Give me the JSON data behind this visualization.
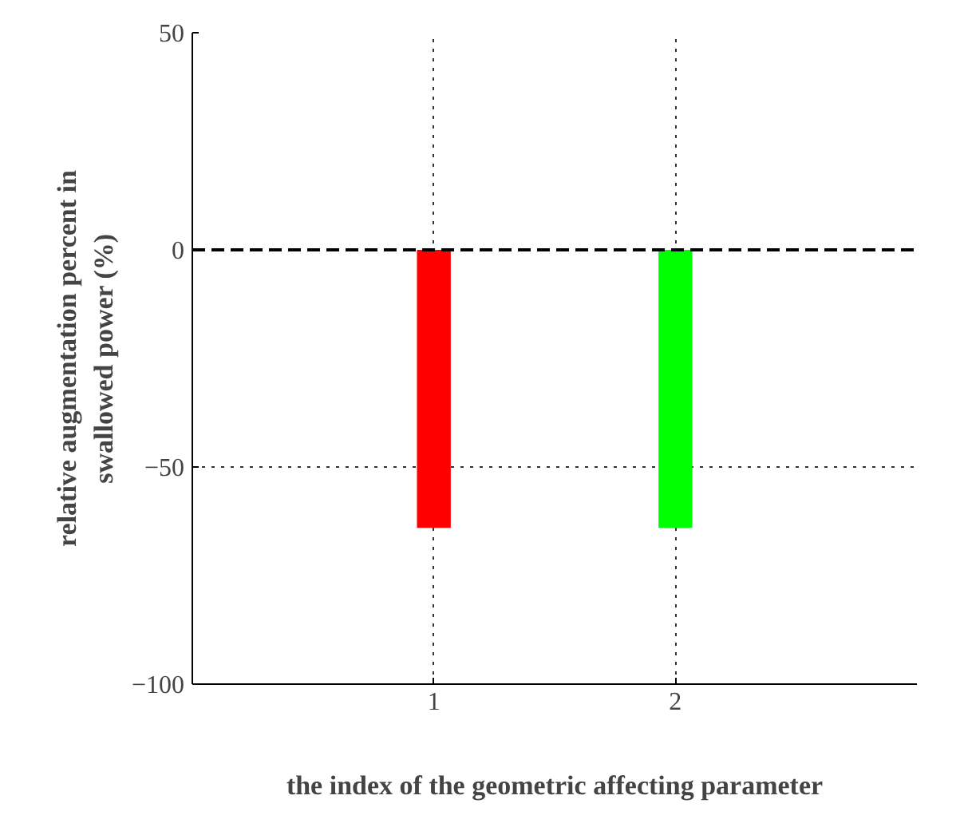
{
  "chart_data": {
    "type": "bar",
    "xlabel": "the index of the geometric affecting parameter",
    "ylabel": "relative augmentation percent in swallowed power (%)",
    "x": [
      1,
      2
    ],
    "values": [
      -64,
      -64
    ],
    "colors": [
      "#ff0000",
      "#00ff00"
    ],
    "xlim": [
      0,
      3
    ],
    "xticks": [
      1,
      2
    ],
    "ylim": [
      -100,
      50
    ],
    "yticks": [
      -100,
      -50,
      0,
      50
    ],
    "grid": true,
    "ref_lines": [
      {
        "axis": "y",
        "value": 0,
        "label": null,
        "color": "#000000",
        "line_style": "dashed"
      }
    ]
  }
}
